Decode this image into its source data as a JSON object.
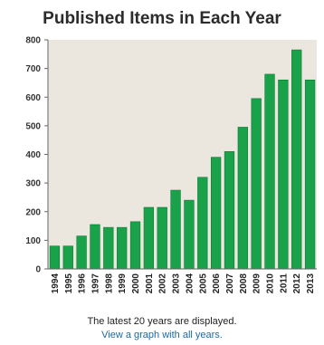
{
  "chart_data": {
    "type": "bar",
    "title": "Published Items in Each Year",
    "categories": [
      "1994",
      "1995",
      "1996",
      "1997",
      "1998",
      "1999",
      "2000",
      "2001",
      "2002",
      "2003",
      "2004",
      "2005",
      "2006",
      "2007",
      "2008",
      "2009",
      "2010",
      "2011",
      "2012",
      "2013"
    ],
    "values": [
      80,
      80,
      115,
      155,
      145,
      145,
      165,
      215,
      215,
      275,
      240,
      320,
      390,
      410,
      495,
      595,
      680,
      660,
      765,
      660
    ],
    "yticks": [
      "0",
      "100",
      "200",
      "300",
      "400",
      "500",
      "600",
      "700",
      "800"
    ],
    "ylim": [
      0,
      800
    ],
    "xlabel": "",
    "ylabel": "",
    "grid": false,
    "colors": {
      "bar": "#19a24a",
      "bar_edge": "#0e7a35",
      "plot_bg": "#ebe7de",
      "axis": "#666666"
    }
  },
  "notes": {
    "latest": "The latest 20 years are displayed.",
    "link": "View a graph with all years."
  }
}
